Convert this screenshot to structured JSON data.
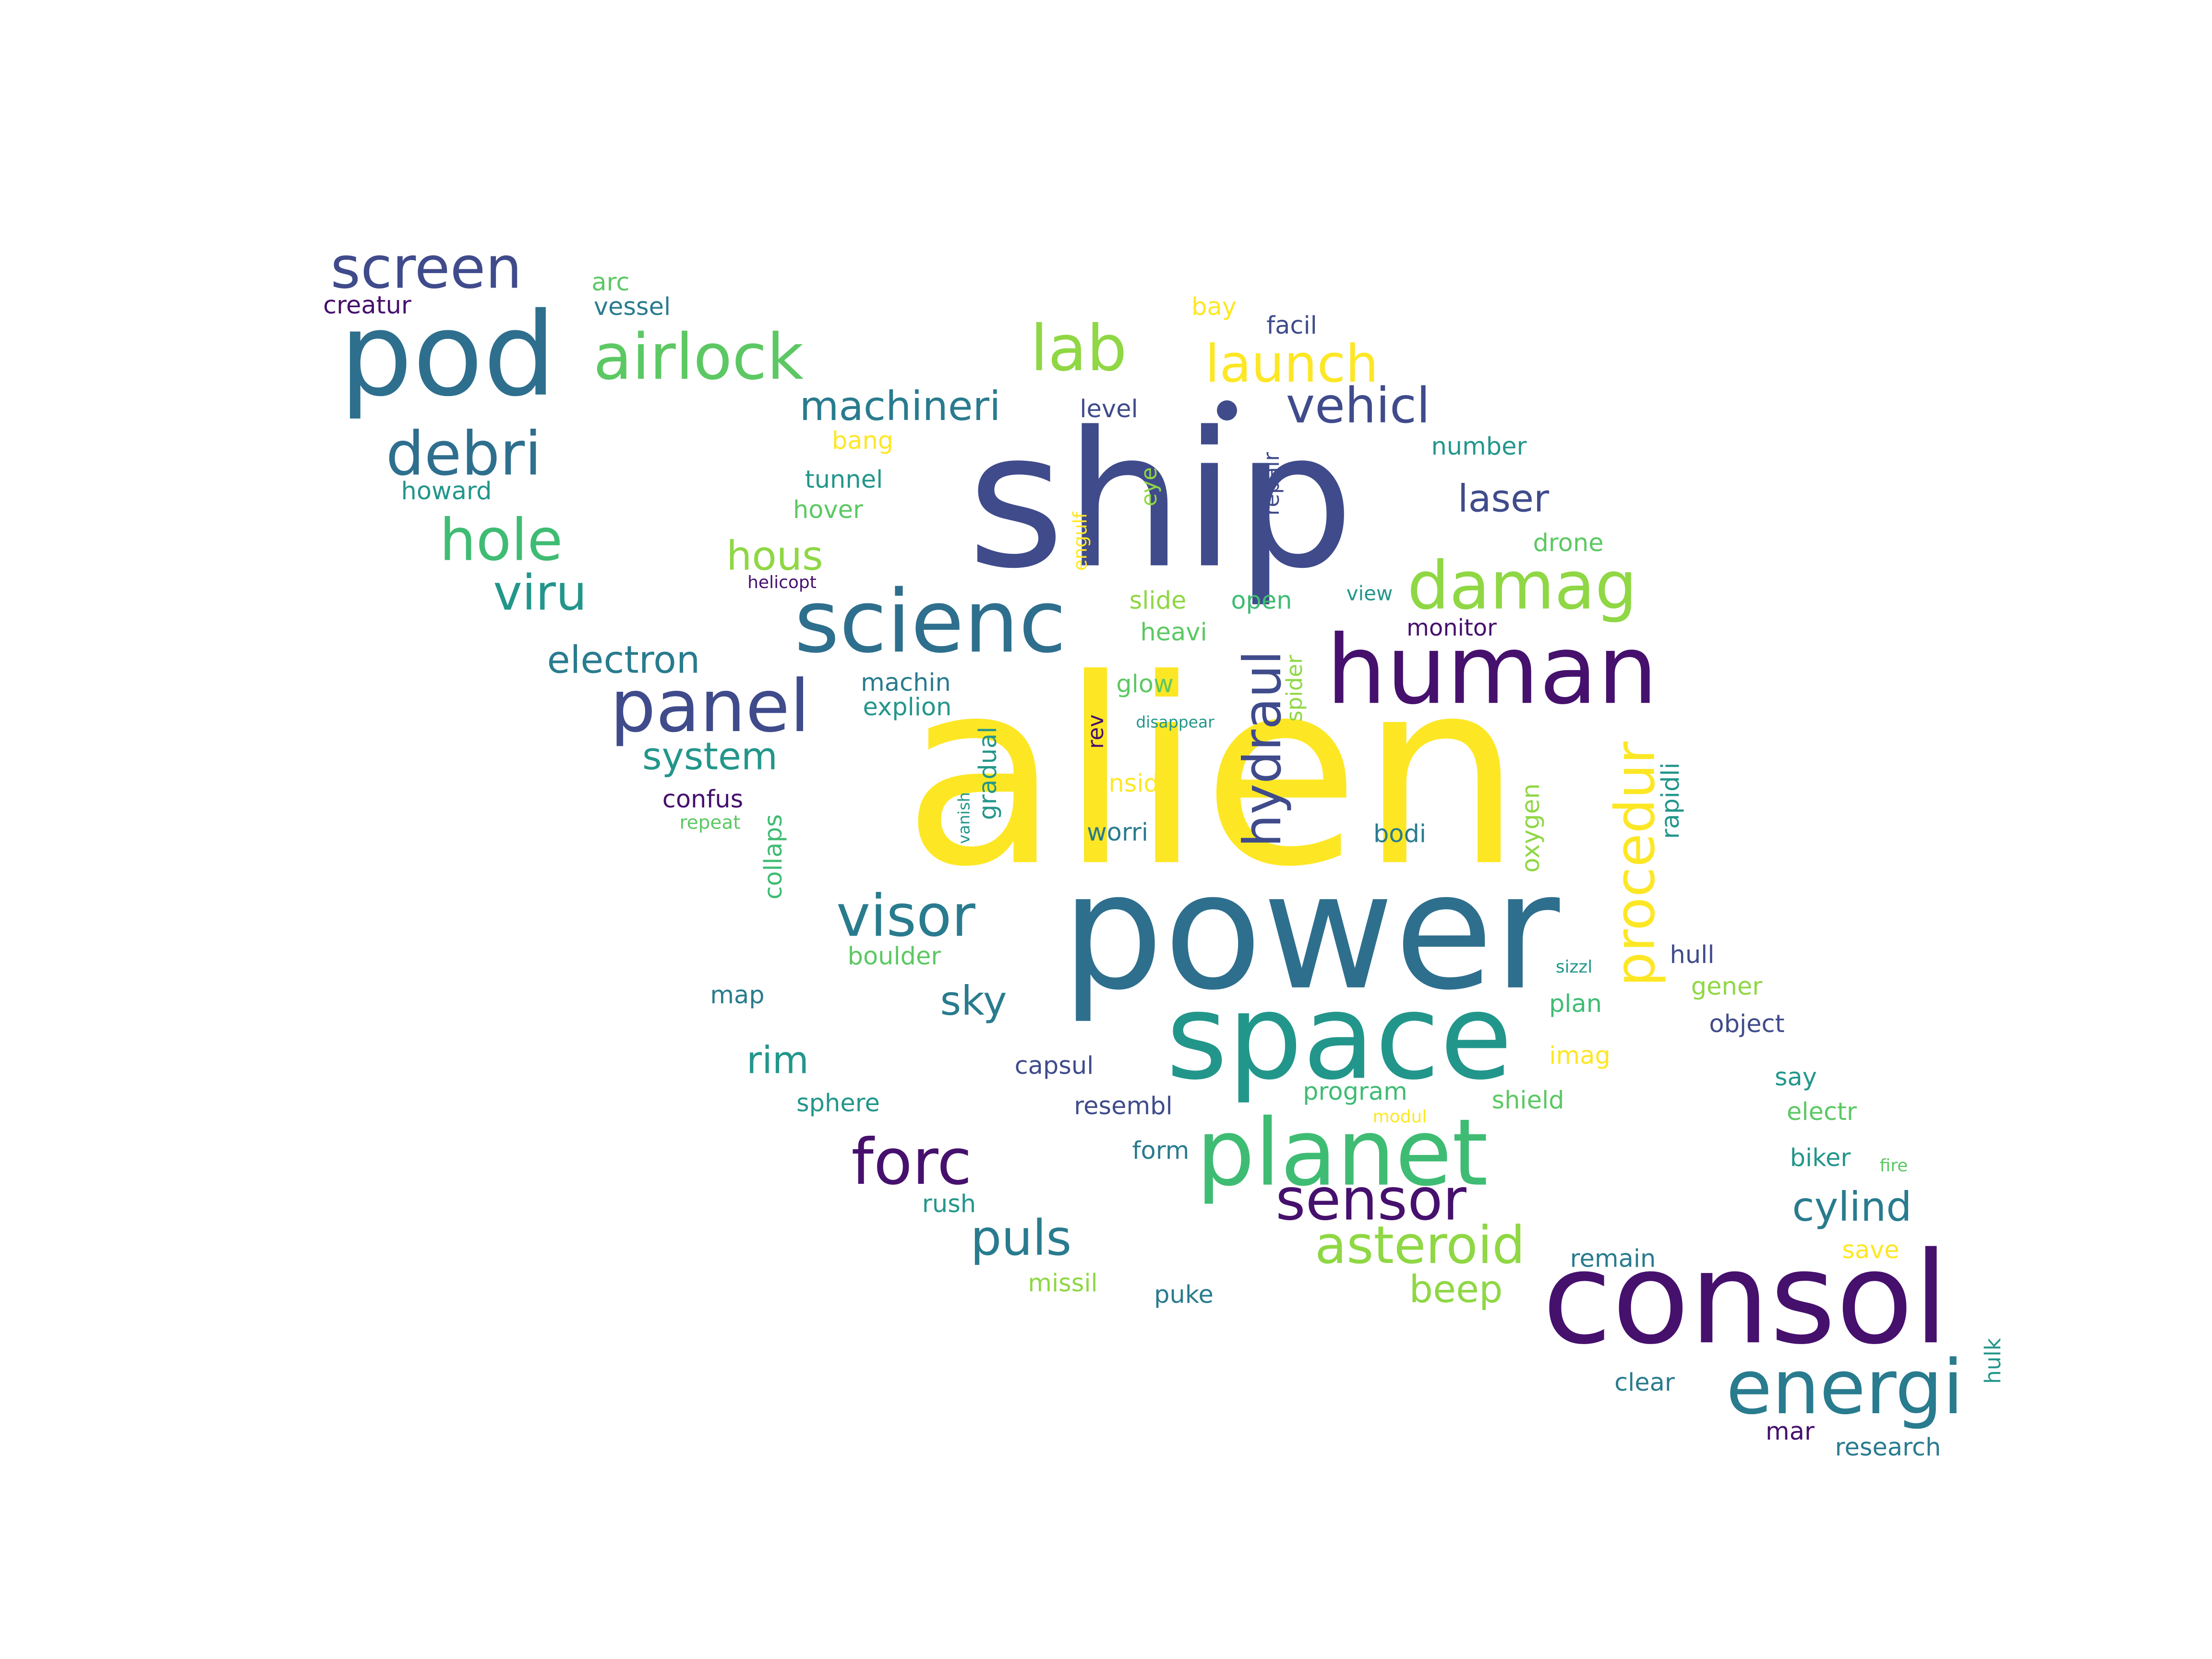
{
  "palette": {
    "dark-purple": "#46106d",
    "indigo": "#3f4b8b",
    "steel-blue": "#2e6f8e",
    "teal-blue": "#297b8e",
    "teal": "#23968b",
    "sea-green": "#20a386",
    "green": "#3fbc73",
    "light-green": "#5cc863",
    "lime": "#8fd744",
    "yellow": "#fde725"
  },
  "words": [
    {
      "text": "alien",
      "color": "yellow"
    },
    {
      "text": "ship",
      "color": "indigo"
    },
    {
      "text": "power",
      "color": "steel-blue"
    },
    {
      "text": "consol",
      "color": "dark-purple"
    },
    {
      "text": "space",
      "color": "teal"
    },
    {
      "text": "human",
      "color": "dark-purple"
    },
    {
      "text": "pod",
      "color": "steel-blue"
    },
    {
      "text": "scienc",
      "color": "steel-blue"
    },
    {
      "text": "planet",
      "color": "green"
    },
    {
      "text": "energi",
      "color": "teal-blue"
    },
    {
      "text": "panel",
      "color": "indigo"
    },
    {
      "text": "airlock",
      "color": "light-green"
    },
    {
      "text": "lab",
      "color": "lime"
    },
    {
      "text": "screen",
      "color": "indigo"
    },
    {
      "text": "damag",
      "color": "lime"
    },
    {
      "text": "forc",
      "color": "dark-purple"
    },
    {
      "text": "sensor",
      "color": "dark-purple"
    },
    {
      "text": "debri",
      "color": "steel-blue"
    },
    {
      "text": "procedur",
      "color": "yellow"
    },
    {
      "text": "hydraul",
      "color": "indigo"
    },
    {
      "text": "visor",
      "color": "teal-blue"
    },
    {
      "text": "hole",
      "color": "green"
    },
    {
      "text": "asteroid",
      "color": "lime"
    },
    {
      "text": "launch",
      "color": "yellow"
    },
    {
      "text": "vehicl",
      "color": "indigo"
    },
    {
      "text": "viru",
      "color": "teal"
    },
    {
      "text": "puls",
      "color": "teal-blue"
    },
    {
      "text": "cylind",
      "color": "teal-blue"
    },
    {
      "text": "laser",
      "color": "indigo"
    },
    {
      "text": "machineri",
      "color": "teal-blue"
    },
    {
      "text": "electron",
      "color": "teal-blue"
    },
    {
      "text": "system",
      "color": "teal"
    },
    {
      "text": "hous",
      "color": "lime"
    },
    {
      "text": "beep",
      "color": "lime"
    },
    {
      "text": "sky",
      "color": "teal-blue"
    },
    {
      "text": "rim",
      "color": "teal"
    },
    {
      "text": "oxygen",
      "color": "lime"
    },
    {
      "text": "rapidli",
      "color": "teal"
    },
    {
      "text": "gradual",
      "color": "teal"
    },
    {
      "text": "collaps",
      "color": "green"
    },
    {
      "text": "spider",
      "color": "lime"
    },
    {
      "text": "repair",
      "color": "indigo"
    },
    {
      "text": "eye",
      "color": "lime"
    },
    {
      "text": "engulf",
      "color": "yellow"
    },
    {
      "text": "hulk",
      "color": "teal"
    },
    {
      "text": "rev",
      "color": "dark-purple"
    },
    {
      "text": "vanish",
      "color": "teal"
    },
    {
      "text": "arc",
      "color": "light-green"
    },
    {
      "text": "creatur",
      "color": "dark-purple"
    },
    {
      "text": "vessel",
      "color": "teal-blue"
    },
    {
      "text": "bay",
      "color": "yellow"
    },
    {
      "text": "facil",
      "color": "indigo"
    },
    {
      "text": "level",
      "color": "indigo"
    },
    {
      "text": "number",
      "color": "teal"
    },
    {
      "text": "bang",
      "color": "yellow"
    },
    {
      "text": "tunnel",
      "color": "teal"
    },
    {
      "text": "howard",
      "color": "teal"
    },
    {
      "text": "hover",
      "color": "light-green"
    },
    {
      "text": "drone",
      "color": "light-green"
    },
    {
      "text": "helicopt",
      "color": "dark-purple"
    },
    {
      "text": "slide",
      "color": "lime"
    },
    {
      "text": "open",
      "color": "green"
    },
    {
      "text": "view",
      "color": "teal"
    },
    {
      "text": "heavi",
      "color": "light-green"
    },
    {
      "text": "monitor",
      "color": "dark-purple"
    },
    {
      "text": "machin",
      "color": "teal-blue"
    },
    {
      "text": "glow",
      "color": "light-green"
    },
    {
      "text": "explion",
      "color": "teal"
    },
    {
      "text": "disappear",
      "color": "teal"
    },
    {
      "text": "insid",
      "color": "yellow"
    },
    {
      "text": "confus",
      "color": "dark-purple"
    },
    {
      "text": "repeat",
      "color": "light-green"
    },
    {
      "text": "worri",
      "color": "teal-blue"
    },
    {
      "text": "bodi",
      "color": "teal-blue"
    },
    {
      "text": "boulder",
      "color": "light-green"
    },
    {
      "text": "sizzl",
      "color": "teal"
    },
    {
      "text": "hull",
      "color": "indigo"
    },
    {
      "text": "map",
      "color": "teal-blue"
    },
    {
      "text": "gener",
      "color": "lime"
    },
    {
      "text": "plan",
      "color": "green"
    },
    {
      "text": "object",
      "color": "indigo"
    },
    {
      "text": "imag",
      "color": "yellow"
    },
    {
      "text": "capsul",
      "color": "indigo"
    },
    {
      "text": "say",
      "color": "teal"
    },
    {
      "text": "program",
      "color": "green"
    },
    {
      "text": "modul",
      "color": "yellow"
    },
    {
      "text": "shield",
      "color": "light-green"
    },
    {
      "text": "sphere",
      "color": "teal"
    },
    {
      "text": "resembl",
      "color": "indigo"
    },
    {
      "text": "electr",
      "color": "light-green"
    },
    {
      "text": "form",
      "color": "teal-blue"
    },
    {
      "text": "biker",
      "color": "teal"
    },
    {
      "text": "fire",
      "color": "light-green"
    },
    {
      "text": "rush",
      "color": "teal"
    },
    {
      "text": "remain",
      "color": "teal-blue"
    },
    {
      "text": "save",
      "color": "yellow"
    },
    {
      "text": "missil",
      "color": "lime"
    },
    {
      "text": "puke",
      "color": "teal-blue"
    },
    {
      "text": "clear",
      "color": "teal-blue"
    },
    {
      "text": "mar",
      "color": "dark-purple"
    },
    {
      "text": "research",
      "color": "teal-blue"
    }
  ]
}
